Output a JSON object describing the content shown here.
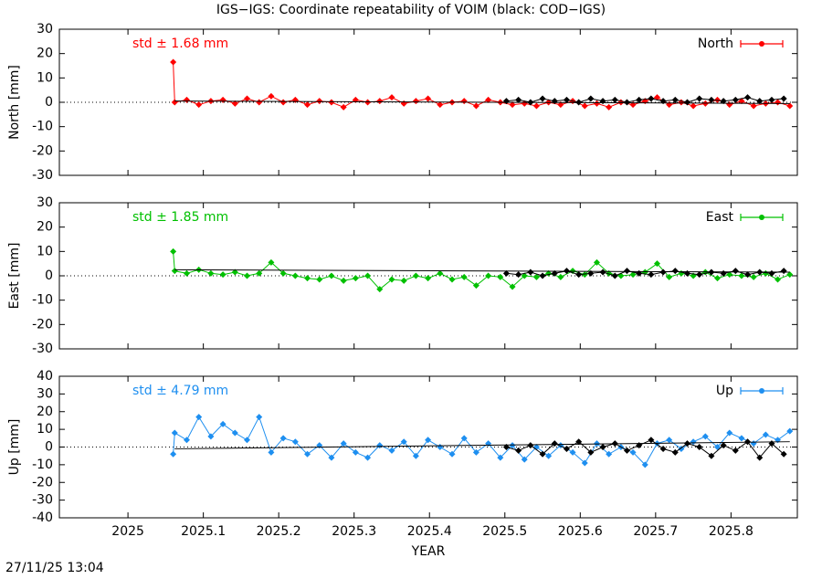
{
  "title": "IGS−IGS: Coordinate repeatability of VOIM (black: COD−IGS)",
  "timestamp": "27/11/25 13:04",
  "chart_data": [
    {
      "type": "line",
      "ylabel": "North [mm]",
      "annotation": "std ± 1.68 mm",
      "annotation_color": "#ff0000",
      "xlim": [
        2024.909,
        2025.888
      ],
      "xticks": [
        2025,
        2025.1,
        2025.2,
        2025.3,
        2025.4,
        2025.5,
        2025.6,
        2025.7,
        2025.8
      ],
      "ylim": [
        -30,
        30
      ],
      "yticks": [
        -30,
        -20,
        -10,
        0,
        10,
        20,
        30
      ],
      "legend": "top-right",
      "trend": {
        "x": [
          2025.062,
          2025.878
        ],
        "values": [
          0.5,
          -0.5
        ]
      },
      "series": [
        {
          "name": "North",
          "color": "#ff0000",
          "x": [
            2025.06,
            2025.062,
            2025.078,
            2025.094,
            2025.11,
            2025.126,
            2025.142,
            2025.158,
            2025.174,
            2025.19,
            2025.206,
            2025.222,
            2025.238,
            2025.254,
            2025.27,
            2025.286,
            2025.302,
            2025.318,
            2025.334,
            2025.35,
            2025.366,
            2025.382,
            2025.398,
            2025.414,
            2025.43,
            2025.446,
            2025.462,
            2025.478,
            2025.494,
            2025.51,
            2025.526,
            2025.542,
            2025.558,
            2025.574,
            2025.59,
            2025.606,
            2025.622,
            2025.638,
            2025.654,
            2025.67,
            2025.686,
            2025.702,
            2025.718,
            2025.734,
            2025.75,
            2025.766,
            2025.782,
            2025.798,
            2025.814,
            2025.83,
            2025.846,
            2025.862,
            2025.878
          ],
          "values": [
            16.5,
            0,
            1,
            -1,
            0.5,
            1,
            -0.5,
            1.5,
            0,
            2.5,
            0,
            1,
            -1,
            0.5,
            0,
            -2,
            1,
            0,
            0.5,
            2,
            -0.5,
            0.5,
            1.5,
            -1,
            0,
            0.5,
            -1.5,
            1,
            0,
            -1,
            -0.5,
            -1.5,
            0,
            -1,
            0.5,
            -1.5,
            -0.5,
            -2,
            0,
            -1,
            0.5,
            2,
            -1,
            0,
            -1.5,
            -0.5,
            1,
            -1,
            0.5,
            -1.5,
            -0.5,
            0,
            -1.5
          ]
        },
        {
          "color": "#000000",
          "x": [
            2025.502,
            2025.518,
            2025.534,
            2025.55,
            2025.566,
            2025.582,
            2025.598,
            2025.614,
            2025.63,
            2025.646,
            2025.662,
            2025.678,
            2025.694,
            2025.71,
            2025.726,
            2025.742,
            2025.758,
            2025.774,
            2025.79,
            2025.806,
            2025.822,
            2025.838,
            2025.854,
            2025.87
          ],
          "values": [
            0.5,
            1,
            0,
            1.5,
            0.5,
            1,
            0,
            1.5,
            0.5,
            1,
            0,
            1,
            1.5,
            0.5,
            1,
            0,
            1.5,
            1,
            0.5,
            1,
            2,
            0.5,
            1,
            1.5
          ]
        }
      ]
    },
    {
      "type": "line",
      "ylabel": "East [mm]",
      "annotation": "std ± 1.85 mm",
      "annotation_color": "#00c000",
      "xlim": [
        2024.909,
        2025.888
      ],
      "xticks": [
        2025,
        2025.1,
        2025.2,
        2025.3,
        2025.4,
        2025.5,
        2025.6,
        2025.7,
        2025.8
      ],
      "ylim": [
        -30,
        30
      ],
      "yticks": [
        -30,
        -20,
        -10,
        0,
        10,
        20,
        30
      ],
      "legend": "top-right",
      "trend": {
        "x": [
          2025.062,
          2025.878
        ],
        "values": [
          2.5,
          1.5
        ]
      },
      "series": [
        {
          "name": "East",
          "color": "#00c000",
          "x": [
            2025.06,
            2025.062,
            2025.078,
            2025.094,
            2025.11,
            2025.126,
            2025.142,
            2025.158,
            2025.174,
            2025.19,
            2025.206,
            2025.222,
            2025.238,
            2025.254,
            2025.27,
            2025.286,
            2025.302,
            2025.318,
            2025.334,
            2025.35,
            2025.366,
            2025.382,
            2025.398,
            2025.414,
            2025.43,
            2025.446,
            2025.462,
            2025.478,
            2025.494,
            2025.51,
            2025.526,
            2025.542,
            2025.558,
            2025.574,
            2025.59,
            2025.606,
            2025.622,
            2025.638,
            2025.654,
            2025.67,
            2025.686,
            2025.702,
            2025.718,
            2025.734,
            2025.75,
            2025.766,
            2025.782,
            2025.798,
            2025.814,
            2025.83,
            2025.846,
            2025.862,
            2025.878
          ],
          "values": [
            10,
            2,
            1,
            2.5,
            1,
            0.5,
            1.5,
            0,
            1,
            5.5,
            1,
            0,
            -1,
            -1.5,
            0,
            -2,
            -1,
            0,
            -5.5,
            -1.5,
            -2,
            0,
            -1,
            1,
            -1.5,
            -0.5,
            -4,
            0,
            -0.5,
            -4.5,
            0,
            -0.5,
            1,
            -0.5,
            2,
            0.5,
            5.5,
            1,
            0,
            0.5,
            1.5,
            5,
            -0.5,
            1,
            0,
            1.5,
            -1,
            0.5,
            0,
            -0.5,
            1,
            -1.5,
            0.5
          ]
        },
        {
          "color": "#000000",
          "x": [
            2025.502,
            2025.518,
            2025.534,
            2025.55,
            2025.566,
            2025.582,
            2025.598,
            2025.614,
            2025.63,
            2025.646,
            2025.662,
            2025.678,
            2025.694,
            2025.71,
            2025.726,
            2025.742,
            2025.758,
            2025.774,
            2025.79,
            2025.806,
            2025.822,
            2025.838,
            2025.854,
            2025.87
          ],
          "values": [
            1,
            0.5,
            1.5,
            0,
            1,
            2,
            0.5,
            1,
            1.5,
            0,
            2,
            1,
            0.5,
            1.5,
            2,
            1,
            0.5,
            1.5,
            1,
            2,
            0.5,
            1.5,
            1,
            2
          ]
        }
      ]
    },
    {
      "type": "line",
      "ylabel": "Up [mm]",
      "xlabel": "YEAR",
      "annotation": "std ± 4.79 mm",
      "annotation_color": "#1e8ff0",
      "xlim": [
        2024.909,
        2025.888
      ],
      "xticks": [
        2025,
        2025.1,
        2025.2,
        2025.3,
        2025.4,
        2025.5,
        2025.6,
        2025.7,
        2025.8
      ],
      "ylim": [
        -40,
        40
      ],
      "yticks": [
        -40,
        -30,
        -20,
        -10,
        0,
        10,
        20,
        30,
        40
      ],
      "legend": "top-right",
      "trend": {
        "x": [
          2025.062,
          2025.878
        ],
        "values": [
          -1,
          3
        ]
      },
      "series": [
        {
          "name": "Up",
          "color": "#1e8ff0",
          "x": [
            2025.06,
            2025.062,
            2025.078,
            2025.094,
            2025.11,
            2025.126,
            2025.142,
            2025.158,
            2025.174,
            2025.19,
            2025.206,
            2025.222,
            2025.238,
            2025.254,
            2025.27,
            2025.286,
            2025.302,
            2025.318,
            2025.334,
            2025.35,
            2025.366,
            2025.382,
            2025.398,
            2025.414,
            2025.43,
            2025.446,
            2025.462,
            2025.478,
            2025.494,
            2025.51,
            2025.526,
            2025.542,
            2025.558,
            2025.574,
            2025.59,
            2025.606,
            2025.622,
            2025.638,
            2025.654,
            2025.67,
            2025.686,
            2025.702,
            2025.718,
            2025.734,
            2025.75,
            2025.766,
            2025.782,
            2025.798,
            2025.814,
            2025.83,
            2025.846,
            2025.862,
            2025.878
          ],
          "values": [
            -4,
            8,
            4,
            17,
            6,
            13,
            8,
            4,
            17,
            -3,
            5,
            3,
            -4,
            1,
            -6,
            2,
            -3,
            -6,
            1,
            -2,
            3,
            -5,
            4,
            0,
            -4,
            5,
            -3,
            2,
            -6,
            1,
            -7,
            0,
            -5,
            1,
            -3,
            -9,
            2,
            -4,
            0,
            -3,
            -10,
            2,
            4,
            -1,
            3,
            6,
            0,
            8,
            5,
            2,
            7,
            4,
            9
          ]
        },
        {
          "color": "#000000",
          "x": [
            2025.502,
            2025.518,
            2025.534,
            2025.55,
            2025.566,
            2025.582,
            2025.598,
            2025.614,
            2025.63,
            2025.646,
            2025.662,
            2025.678,
            2025.694,
            2025.71,
            2025.726,
            2025.742,
            2025.758,
            2025.774,
            2025.79,
            2025.806,
            2025.822,
            2025.838,
            2025.854,
            2025.87
          ],
          "values": [
            0,
            -2,
            1,
            -4,
            2,
            -1,
            3,
            -3,
            0,
            2,
            -2,
            1,
            4,
            -1,
            -3,
            2,
            0,
            -5,
            1,
            -2,
            3,
            -6,
            2,
            -4
          ]
        }
      ]
    }
  ]
}
